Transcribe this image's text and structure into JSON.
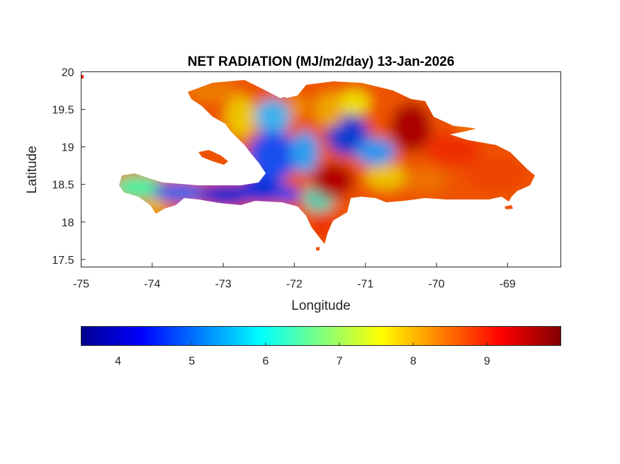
{
  "figure": {
    "title": "NET RADIATION (MJ/m2/day) 13-Jan-2026",
    "xlabel": "Longitude",
    "ylabel": "Latitude"
  },
  "map": {
    "x_range": [
      -75,
      -68.25
    ],
    "y_range": [
      17.4,
      20
    ],
    "x_ticks": [
      {
        "value": -75,
        "label": "-75"
      },
      {
        "value": -74,
        "label": "-74"
      },
      {
        "value": -73,
        "label": "-73"
      },
      {
        "value": -72,
        "label": "-72"
      },
      {
        "value": -71,
        "label": "-71"
      },
      {
        "value": -70,
        "label": "-70"
      },
      {
        "value": -69,
        "label": "-69"
      }
    ],
    "y_ticks": [
      {
        "value": 20,
        "label": "20"
      },
      {
        "value": 19.5,
        "label": "19.5"
      },
      {
        "value": 19,
        "label": "19"
      },
      {
        "value": 18.5,
        "label": "18.5"
      },
      {
        "value": 18,
        "label": "18"
      },
      {
        "value": 17.5,
        "label": "17.5"
      }
    ],
    "colormap": "jet",
    "color_range": [
      3.5,
      10
    ],
    "colors": {
      "low": "#00008f",
      "mid": "#00ffff",
      "high": "#800000",
      "axis": "#262626"
    }
  },
  "colorbar": {
    "ticks": [
      {
        "value": 4,
        "label": "4"
      },
      {
        "value": 5,
        "label": "5"
      },
      {
        "value": 6,
        "label": "6"
      },
      {
        "value": 7,
        "label": "7"
      },
      {
        "value": 8,
        "label": "8"
      },
      {
        "value": 9,
        "label": "9"
      }
    ]
  }
}
